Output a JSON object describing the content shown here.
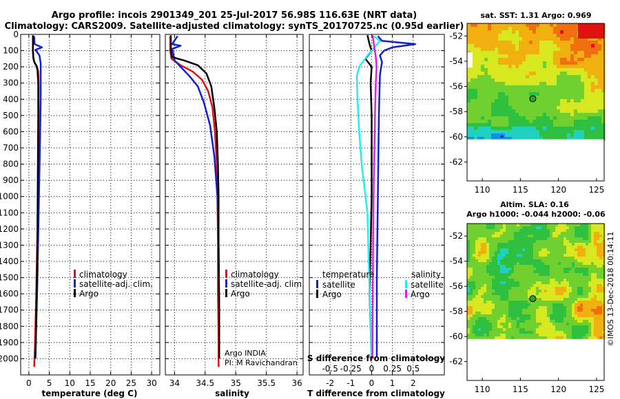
{
  "header": {
    "line1": "Argo profile: incois 2901349_201 25-Jul-2017 56.98S 116.63E (NRT data)",
    "line2": "Climatology: CARS2009. Satellite-adjusted climatology: synTS_20170725.nc (0.95d earlier)"
  },
  "colors": {
    "climatology": "#e01010",
    "satellite": "#1020d0",
    "argo": "#000000",
    "sat_cyan": "#20f0f0",
    "argo_magenta": "#e020e0"
  },
  "chart_data": [
    {
      "type": "line",
      "id": "temperature",
      "xlabel": "temperature (deg C)",
      "ylabel": "",
      "xlim": [
        -2,
        32
      ],
      "ylim": [
        2100,
        0
      ],
      "xticks": [
        0,
        5,
        10,
        15,
        20,
        25,
        30
      ],
      "xtick_labels": [
        "0",
        "5",
        "10",
        "15",
        "20",
        "25",
        "30"
      ],
      "yticks": [
        0,
        100,
        200,
        300,
        400,
        500,
        600,
        700,
        800,
        900,
        1000,
        1100,
        1200,
        1300,
        1400,
        1500,
        1600,
        1700,
        1800,
        1900,
        2000
      ],
      "ytick_labels": [
        "0",
        "100",
        "200",
        "300",
        "400",
        "500",
        "600",
        "700",
        "800",
        "900",
        "1000",
        "1100",
        "1200",
        "1300",
        "1400",
        "1500",
        "1600",
        "1700",
        "1800",
        "1900",
        "2000"
      ],
      "legend": [
        "climatology",
        "satellite-adj. clim.",
        "Argo"
      ],
      "series": [
        {
          "name": "climatology",
          "color": "#e01010",
          "points": [
            [
              1.0,
              10
            ],
            [
              1.0,
              100
            ],
            [
              1.1,
              150
            ],
            [
              1.5,
              180
            ],
            [
              2.0,
              200
            ],
            [
              2.3,
              230
            ],
            [
              2.4,
              300
            ],
            [
              2.4,
              500
            ],
            [
              2.3,
              800
            ],
            [
              2.1,
              1200
            ],
            [
              1.8,
              1600
            ],
            [
              1.5,
              1900
            ],
            [
              1.3,
              2050
            ]
          ]
        },
        {
          "name": "satellite-adj. clim.",
          "color": "#1020d0",
          "points": [
            [
              1.3,
              10
            ],
            [
              1.4,
              60
            ],
            [
              3.2,
              80
            ],
            [
              1.6,
              95
            ],
            [
              2.6,
              130
            ],
            [
              2.9,
              180
            ],
            [
              2.9,
              250
            ],
            [
              2.9,
              400
            ],
            [
              2.7,
              700
            ],
            [
              2.4,
              1100
            ],
            [
              2.1,
              1500
            ],
            [
              1.8,
              1800
            ],
            [
              1.6,
              1990
            ]
          ]
        },
        {
          "name": "Argo",
          "color": "#000000",
          "points": [
            [
              1.0,
              5
            ],
            [
              1.0,
              100
            ],
            [
              1.1,
              140
            ],
            [
              1.3,
              170
            ],
            [
              1.8,
              190
            ],
            [
              2.1,
              220
            ],
            [
              2.3,
              300
            ],
            [
              2.3,
              500
            ],
            [
              2.2,
              800
            ],
            [
              2.1,
              1200
            ],
            [
              1.9,
              1600
            ],
            [
              1.7,
              1900
            ],
            [
              1.6,
              2000
            ]
          ]
        }
      ]
    },
    {
      "type": "line",
      "id": "salinity",
      "xlabel": "salinity",
      "xlim": [
        33.85,
        36.1
      ],
      "ylim": [
        2100,
        0
      ],
      "xticks": [
        34,
        34.5,
        35,
        35.5,
        36
      ],
      "xtick_labels": [
        "34",
        "34.5",
        "35",
        "35.5",
        "36"
      ],
      "legend": [
        "climatology",
        "satellite-adj. clim.",
        "Argo"
      ],
      "annotation_lines": [
        "Argo INDIA",
        "PI: M Ravichandran"
      ],
      "series": [
        {
          "name": "climatology",
          "color": "#e01010",
          "points": [
            [
              33.93,
              10
            ],
            [
              33.93,
              100
            ],
            [
              33.95,
              150
            ],
            [
              34.1,
              190
            ],
            [
              34.3,
              230
            ],
            [
              34.45,
              280
            ],
            [
              34.55,
              350
            ],
            [
              34.62,
              450
            ],
            [
              34.66,
              600
            ],
            [
              34.69,
              800
            ],
            [
              34.7,
              1000
            ],
            [
              34.71,
              1300
            ],
            [
              34.71,
              1600
            ],
            [
              34.72,
              1900
            ],
            [
              34.72,
              2050
            ]
          ]
        },
        {
          "name": "satellite-adj. clim.",
          "color": "#1020d0",
          "points": [
            [
              34.05,
              10
            ],
            [
              33.96,
              60
            ],
            [
              34.1,
              70
            ],
            [
              33.96,
              90
            ],
            [
              33.98,
              120
            ],
            [
              34.0,
              160
            ],
            [
              34.1,
              200
            ],
            [
              34.25,
              260
            ],
            [
              34.38,
              320
            ],
            [
              34.48,
              420
            ],
            [
              34.58,
              560
            ],
            [
              34.65,
              750
            ],
            [
              34.7,
              1000
            ],
            [
              34.72,
              1300
            ],
            [
              34.73,
              1700
            ],
            [
              34.73,
              1990
            ]
          ]
        },
        {
          "name": "Argo",
          "color": "#000000",
          "points": [
            [
              33.94,
              5
            ],
            [
              33.94,
              100
            ],
            [
              33.96,
              140
            ],
            [
              34.15,
              160
            ],
            [
              34.38,
              190
            ],
            [
              34.52,
              240
            ],
            [
              34.6,
              320
            ],
            [
              34.65,
              450
            ],
            [
              34.69,
              600
            ],
            [
              34.71,
              800
            ],
            [
              34.72,
              1000
            ],
            [
              34.72,
              1300
            ],
            [
              34.73,
              1700
            ],
            [
              34.73,
              2000
            ]
          ]
        }
      ]
    },
    {
      "type": "line",
      "id": "difference",
      "xlabel": "T difference from climatology",
      "top_axis_label": "S difference from climatology",
      "xlim": [
        -3,
        3.5
      ],
      "ylim": [
        2100,
        0
      ],
      "xticks": [
        -2,
        -1,
        0,
        1,
        2
      ],
      "xtick_labels": [
        "-2",
        "-1",
        "0",
        "1",
        "2"
      ],
      "top_ticks": [
        -0.5,
        -0.25,
        0,
        0.25,
        0.5
      ],
      "top_tick_labels": [
        "-0.5",
        "-0.25",
        "0",
        "0.25",
        "0.5"
      ],
      "top_xlim": [
        -0.75,
        0.875
      ],
      "legend_left_title": "temperature",
      "legend_right_title": "salinity",
      "legend_left": [
        "satellite",
        "Argo"
      ],
      "legend_right": [
        "satellite",
        "Argo"
      ],
      "series": [
        {
          "name": "temperature satellite",
          "color": "#1020d0",
          "units": "T",
          "points": [
            [
              0.3,
              10
            ],
            [
              0.5,
              40
            ],
            [
              2.1,
              60
            ],
            [
              1.0,
              80
            ],
            [
              0.6,
              100
            ],
            [
              0.4,
              130
            ],
            [
              0.5,
              170
            ],
            [
              0.4,
              250
            ],
            [
              0.35,
              500
            ],
            [
              0.3,
              1000
            ],
            [
              0.25,
              1500
            ],
            [
              0.25,
              1990
            ]
          ]
        },
        {
          "name": "temperature Argo",
          "color": "#000000",
          "units": "T",
          "points": [
            [
              -0.2,
              5
            ],
            [
              -0.1,
              60
            ],
            [
              0.0,
              100
            ],
            [
              -0.3,
              150
            ],
            [
              0.0,
              200
            ],
            [
              -0.05,
              300
            ],
            [
              0.0,
              500
            ],
            [
              0.0,
              1000
            ],
            [
              -0.05,
              1300
            ],
            [
              -0.1,
              1600
            ],
            [
              0.0,
              2000
            ]
          ]
        },
        {
          "name": "salinity satellite",
          "color": "#20f0f0",
          "units": "S",
          "points": [
            [
              0.02,
              10
            ],
            [
              0.1,
              40
            ],
            [
              0.05,
              70
            ],
            [
              -0.05,
              130
            ],
            [
              -0.15,
              200
            ],
            [
              -0.18,
              260
            ],
            [
              -0.17,
              400
            ],
            [
              -0.15,
              600
            ],
            [
              -0.12,
              800
            ],
            [
              -0.05,
              1100
            ],
            [
              -0.03,
              1500
            ],
            [
              0.0,
              1990
            ]
          ]
        },
        {
          "name": "salinity Argo",
          "color": "#e020e0",
          "units": "S",
          "points": [
            [
              0.01,
              5
            ],
            [
              0.05,
              140
            ],
            [
              0.06,
              200
            ],
            [
              0.05,
              300
            ],
            [
              0.04,
              500
            ],
            [
              0.03,
              800
            ],
            [
              0.02,
              1100
            ],
            [
              0.015,
              1500
            ],
            [
              0.01,
              2000
            ]
          ]
        }
      ]
    },
    {
      "type": "heatmap",
      "id": "sst_map",
      "title": "sat. SST: 1.31 Argo: 0.969",
      "xlim": [
        108,
        126
      ],
      "ylim": [
        -63.5,
        -51
      ],
      "xticks": [
        110,
        115,
        120,
        125
      ],
      "xtick_labels": [
        "110",
        "115",
        "120",
        "125"
      ],
      "yticks": [
        -52,
        -54,
        -56,
        -58,
        -60,
        -62
      ],
      "ytick_labels": [
        "-52",
        "-54",
        "-56",
        "-58",
        "-60",
        "-62"
      ],
      "argo_position": [
        116.63,
        -56.98
      ]
    },
    {
      "type": "heatmap",
      "id": "sla_map",
      "title_line1": "Altim. SLA: 0.16",
      "title_line2": "Argo h1000: -0.044 h2000: -0.06",
      "xlim": [
        108,
        126
      ],
      "ylim": [
        -63.5,
        -51
      ],
      "xticks": [
        110,
        115,
        120,
        125
      ],
      "xtick_labels": [
        "110",
        "115",
        "120",
        "125"
      ],
      "yticks": [
        -52,
        -54,
        -56,
        -58,
        -60,
        -62
      ],
      "ytick_labels": [
        "-52",
        "-54",
        "-56",
        "-58",
        "-60",
        "-62"
      ],
      "argo_position": [
        116.63,
        -56.98
      ]
    }
  ],
  "legend_labels": {
    "climatology": "climatology",
    "satellite_adj": "satellite-adj. clim.",
    "argo": "Argo",
    "temperature": "temperature",
    "salinity": "salinity",
    "satellite": "satellite"
  },
  "credit": "©IMOS 13-Dec-2018 00:14:11"
}
